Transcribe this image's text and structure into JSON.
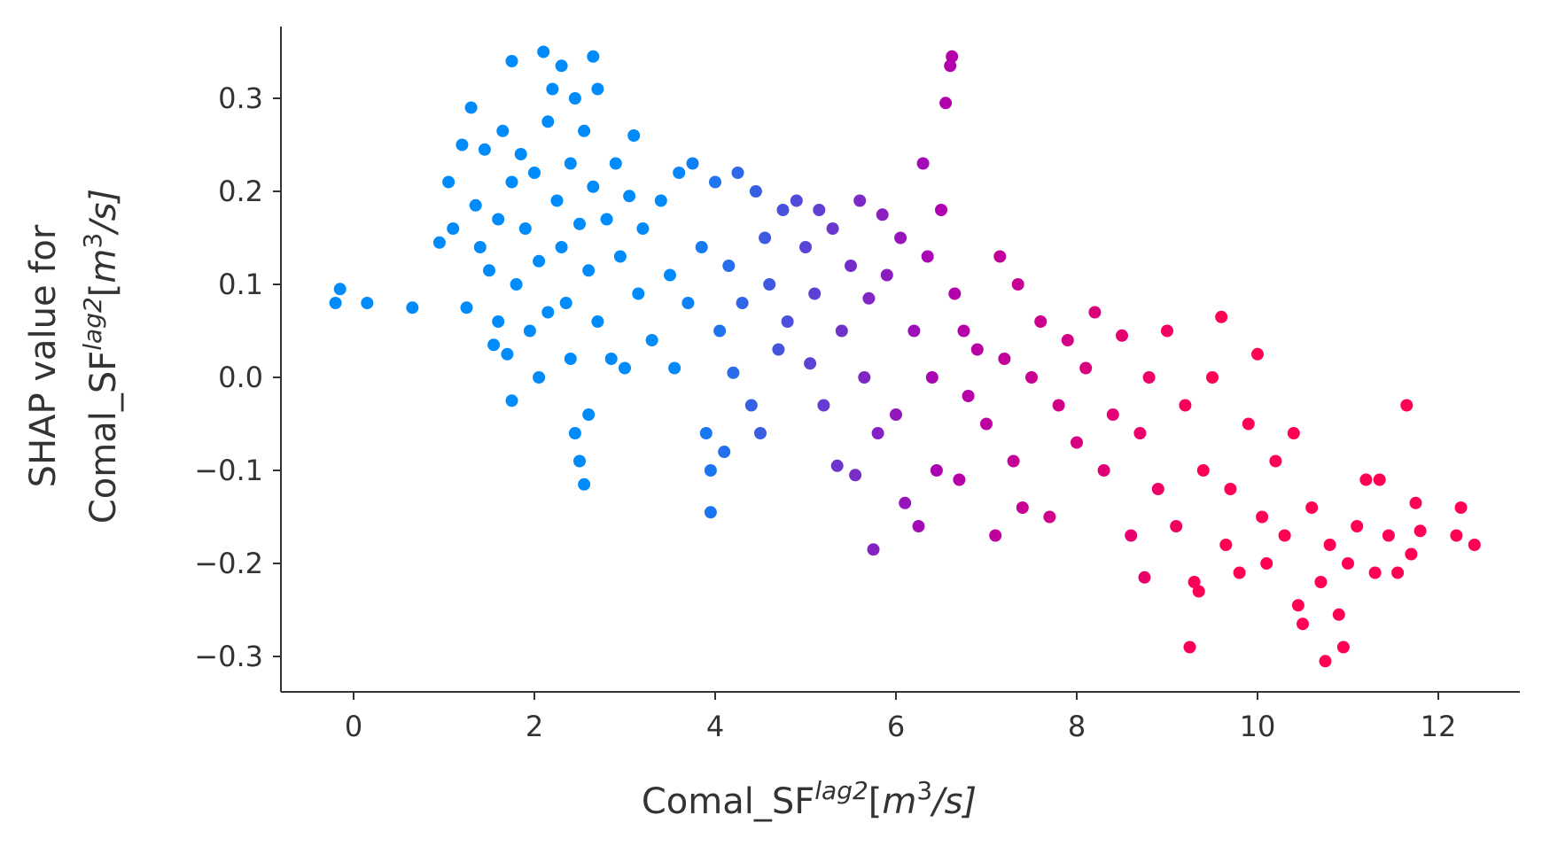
{
  "chart_data": {
    "type": "scatter",
    "title": "",
    "xlabel": "Comal_SF^{lag2}[m^3/s]",
    "ylabel": "SHAP value for Comal_SF^{lag2}[m^3/s]",
    "xlabel_parts": {
      "base": "Comal_SF",
      "sup": "lag2",
      "unit_open": "[",
      "unit_m": "m",
      "unit_exp": "3",
      "unit_rest": "/s]"
    },
    "ylabel_line1": "SHAP value for",
    "ylabel_parts": {
      "base": "Comal_SF",
      "sup": "lag2",
      "unit_open": "[",
      "unit_m": "m",
      "unit_exp": "3",
      "unit_rest": "/s]"
    },
    "xlim": [
      -0.8,
      13.0
    ],
    "ylim": [
      -0.34,
      0.38
    ],
    "xticks": [
      0,
      2,
      4,
      6,
      8,
      10,
      12
    ],
    "xtick_labels": [
      "0",
      "2",
      "4",
      "6",
      "8",
      "10",
      "12"
    ],
    "yticks": [
      0.3,
      0.2,
      0.1,
      0.0,
      -0.1,
      -0.2,
      -0.3
    ],
    "ytick_labels": [
      "0.3",
      "0.2",
      "0.1",
      "0.0",
      "−0.1",
      "−0.2",
      "−0.3"
    ],
    "grid": false,
    "legend": "none",
    "color_encoding": "feature value (blue = low, red = high)",
    "colors": {
      "low": "#008bfb",
      "mid": "#b000b0",
      "high": "#ff0052",
      "axis": "#333333"
    },
    "series": [
      {
        "name": "observations",
        "points": [
          [
            -0.2,
            0.08
          ],
          [
            -0.15,
            0.095
          ],
          [
            0.15,
            0.08
          ],
          [
            0.65,
            0.075
          ],
          [
            0.95,
            0.145
          ],
          [
            1.05,
            0.21
          ],
          [
            1.1,
            0.16
          ],
          [
            1.2,
            0.25
          ],
          [
            1.25,
            0.075
          ],
          [
            1.3,
            0.29
          ],
          [
            1.35,
            0.185
          ],
          [
            1.4,
            0.14
          ],
          [
            1.45,
            0.245
          ],
          [
            1.5,
            0.115
          ],
          [
            1.55,
            0.035
          ],
          [
            1.6,
            0.06
          ],
          [
            1.6,
            0.17
          ],
          [
            1.65,
            0.265
          ],
          [
            1.7,
            0.025
          ],
          [
            1.75,
            0.21
          ],
          [
            1.75,
            -0.025
          ],
          [
            1.75,
            0.34
          ],
          [
            1.8,
            0.1
          ],
          [
            1.85,
            0.24
          ],
          [
            1.9,
            0.16
          ],
          [
            1.95,
            0.05
          ],
          [
            2.0,
            0.22
          ],
          [
            2.05,
            0.125
          ],
          [
            2.05,
            0.0
          ],
          [
            2.1,
            0.35
          ],
          [
            2.15,
            0.275
          ],
          [
            2.15,
            0.07
          ],
          [
            2.2,
            0.31
          ],
          [
            2.25,
            0.19
          ],
          [
            2.3,
            0.335
          ],
          [
            2.3,
            0.14
          ],
          [
            2.35,
            0.08
          ],
          [
            2.4,
            0.23
          ],
          [
            2.4,
            0.02
          ],
          [
            2.45,
            0.3
          ],
          [
            2.45,
            -0.06
          ],
          [
            2.5,
            0.165
          ],
          [
            2.5,
            -0.09
          ],
          [
            2.55,
            0.265
          ],
          [
            2.55,
            -0.115
          ],
          [
            2.6,
            0.115
          ],
          [
            2.6,
            -0.04
          ],
          [
            2.65,
            0.345
          ],
          [
            2.65,
            0.205
          ],
          [
            2.7,
            0.31
          ],
          [
            2.7,
            0.06
          ],
          [
            2.8,
            0.17
          ],
          [
            2.85,
            0.02
          ],
          [
            2.9,
            0.23
          ],
          [
            2.95,
            0.13
          ],
          [
            3.0,
            0.01
          ],
          [
            3.05,
            0.195
          ],
          [
            3.1,
            0.26
          ],
          [
            3.15,
            0.09
          ],
          [
            3.2,
            0.16
          ],
          [
            3.3,
            0.04
          ],
          [
            3.4,
            0.19
          ],
          [
            3.5,
            0.11
          ],
          [
            3.55,
            0.01
          ],
          [
            3.6,
            0.22
          ],
          [
            3.7,
            0.08
          ],
          [
            3.75,
            0.23
          ],
          [
            3.85,
            0.14
          ],
          [
            3.9,
            -0.06
          ],
          [
            3.95,
            -0.145
          ],
          [
            3.95,
            -0.1
          ],
          [
            4.0,
            0.21
          ],
          [
            4.05,
            0.05
          ],
          [
            4.1,
            -0.08
          ],
          [
            4.15,
            0.12
          ],
          [
            4.2,
            0.005
          ],
          [
            4.25,
            0.22
          ],
          [
            4.3,
            0.08
          ],
          [
            4.4,
            -0.03
          ],
          [
            4.45,
            0.2
          ],
          [
            4.5,
            -0.06
          ],
          [
            4.55,
            0.15
          ],
          [
            4.6,
            0.1
          ],
          [
            4.7,
            0.03
          ],
          [
            4.75,
            0.18
          ],
          [
            4.8,
            0.06
          ],
          [
            4.9,
            0.19
          ],
          [
            5.0,
            0.14
          ],
          [
            5.05,
            0.015
          ],
          [
            5.1,
            0.09
          ],
          [
            5.15,
            0.18
          ],
          [
            5.2,
            -0.03
          ],
          [
            5.3,
            0.16
          ],
          [
            5.35,
            -0.095
          ],
          [
            5.4,
            0.05
          ],
          [
            5.5,
            0.12
          ],
          [
            5.55,
            -0.105
          ],
          [
            5.6,
            0.19
          ],
          [
            5.65,
            0.0
          ],
          [
            5.7,
            0.085
          ],
          [
            5.75,
            -0.185
          ],
          [
            5.8,
            -0.06
          ],
          [
            5.85,
            0.175
          ],
          [
            5.9,
            0.11
          ],
          [
            6.0,
            -0.04
          ],
          [
            6.05,
            0.15
          ],
          [
            6.1,
            -0.135
          ],
          [
            6.2,
            0.05
          ],
          [
            6.25,
            -0.16
          ],
          [
            6.3,
            0.23
          ],
          [
            6.35,
            0.13
          ],
          [
            6.4,
            0.0
          ],
          [
            6.45,
            -0.1
          ],
          [
            6.5,
            0.18
          ],
          [
            6.55,
            0.295
          ],
          [
            6.6,
            0.335
          ],
          [
            6.62,
            0.345
          ],
          [
            6.65,
            0.09
          ],
          [
            6.7,
            -0.11
          ],
          [
            6.75,
            0.05
          ],
          [
            6.8,
            -0.02
          ],
          [
            6.9,
            0.03
          ],
          [
            7.0,
            -0.05
          ],
          [
            7.1,
            -0.17
          ],
          [
            7.15,
            0.13
          ],
          [
            7.2,
            0.02
          ],
          [
            7.3,
            -0.09
          ],
          [
            7.35,
            0.1
          ],
          [
            7.4,
            -0.14
          ],
          [
            7.5,
            0.0
          ],
          [
            7.6,
            0.06
          ],
          [
            7.7,
            -0.15
          ],
          [
            7.8,
            -0.03
          ],
          [
            7.9,
            0.04
          ],
          [
            8.0,
            -0.07
          ],
          [
            8.1,
            0.01
          ],
          [
            8.2,
            0.07
          ],
          [
            8.3,
            -0.1
          ],
          [
            8.4,
            -0.04
          ],
          [
            8.5,
            0.045
          ],
          [
            8.6,
            -0.17
          ],
          [
            8.7,
            -0.06
          ],
          [
            8.75,
            -0.215
          ],
          [
            8.8,
            0.0
          ],
          [
            8.9,
            -0.12
          ],
          [
            9.0,
            0.05
          ],
          [
            9.1,
            -0.16
          ],
          [
            9.2,
            -0.03
          ],
          [
            9.25,
            -0.29
          ],
          [
            9.3,
            -0.22
          ],
          [
            9.35,
            -0.23
          ],
          [
            9.4,
            -0.1
          ],
          [
            9.5,
            0.0
          ],
          [
            9.6,
            0.065
          ],
          [
            9.65,
            -0.18
          ],
          [
            9.7,
            -0.12
          ],
          [
            9.8,
            -0.21
          ],
          [
            9.9,
            -0.05
          ],
          [
            10.0,
            0.025
          ],
          [
            10.05,
            -0.15
          ],
          [
            10.1,
            -0.2
          ],
          [
            10.2,
            -0.09
          ],
          [
            10.3,
            -0.17
          ],
          [
            10.4,
            -0.06
          ],
          [
            10.45,
            -0.245
          ],
          [
            10.5,
            -0.265
          ],
          [
            10.6,
            -0.14
          ],
          [
            10.7,
            -0.22
          ],
          [
            10.75,
            -0.305
          ],
          [
            10.8,
            -0.18
          ],
          [
            10.9,
            -0.255
          ],
          [
            10.95,
            -0.29
          ],
          [
            11.0,
            -0.2
          ],
          [
            11.1,
            -0.16
          ],
          [
            11.2,
            -0.11
          ],
          [
            11.3,
            -0.21
          ],
          [
            11.35,
            -0.11
          ],
          [
            11.45,
            -0.17
          ],
          [
            11.55,
            -0.21
          ],
          [
            11.65,
            -0.03
          ],
          [
            11.7,
            -0.19
          ],
          [
            11.75,
            -0.135
          ],
          [
            11.8,
            -0.165
          ],
          [
            12.2,
            -0.17
          ],
          [
            12.25,
            -0.14
          ],
          [
            12.4,
            -0.18
          ]
        ]
      }
    ]
  }
}
